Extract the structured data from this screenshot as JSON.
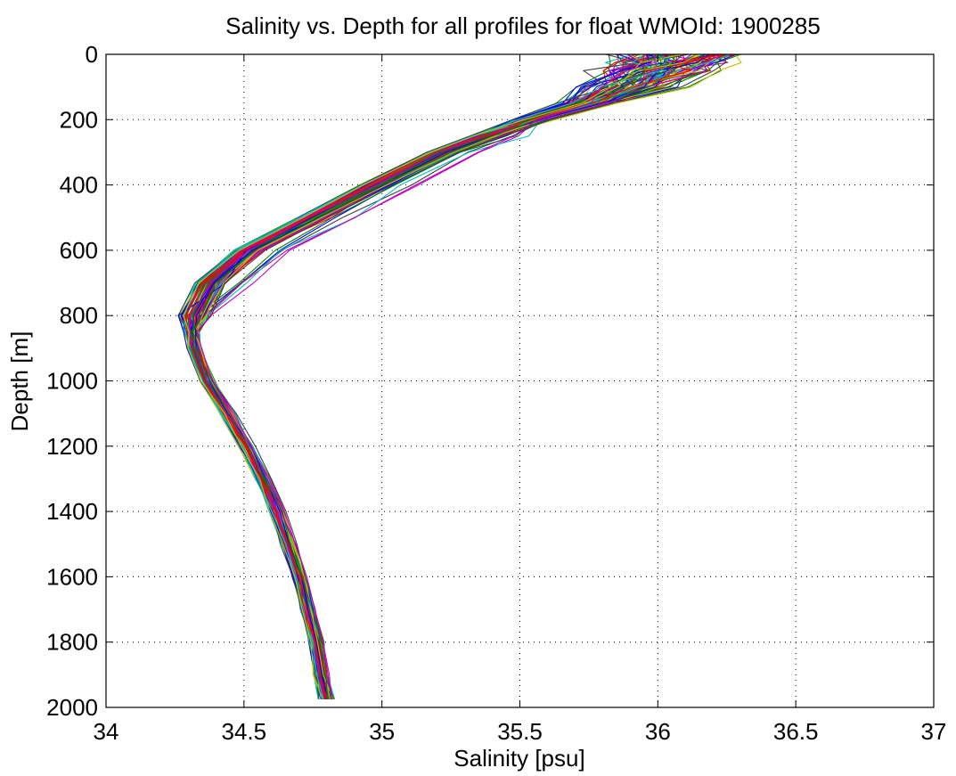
{
  "chart_data": {
    "type": "line",
    "title": "Salinity vs. Depth for all profiles for float WMOId: 1900285",
    "xlabel": "Salinity [psu]",
    "ylabel": "Depth [m]",
    "xlim": [
      34,
      37
    ],
    "ylim": [
      0,
      2000
    ],
    "y_reversed": true,
    "grid": true,
    "grid_style": "dotted",
    "x_ticks": [
      34,
      34.5,
      35,
      35.5,
      36,
      36.5,
      37
    ],
    "x_tick_labels": [
      "34",
      "34.5",
      "35",
      "35.5",
      "36",
      "36.5",
      "37"
    ],
    "y_ticks": [
      0,
      200,
      400,
      600,
      800,
      1000,
      1200,
      1400,
      1600,
      1800,
      2000
    ],
    "y_tick_labels": [
      "0",
      "200",
      "400",
      "600",
      "800",
      "1000",
      "1200",
      "1400",
      "1600",
      "1800",
      "2000"
    ],
    "series_colors": [
      "#0000ff",
      "#008000",
      "#ff0000",
      "#00bfbf",
      "#bf00bf",
      "#bfbf00",
      "#404040"
    ],
    "mean_profile": {
      "depth": [
        0,
        25,
        50,
        100,
        150,
        200,
        250,
        300,
        400,
        500,
        600,
        700,
        800,
        850,
        900,
        1000,
        1100,
        1200,
        1300,
        1400,
        1500,
        1600,
        1700,
        1800,
        1900,
        1975
      ],
      "salinity": [
        36.1,
        36.05,
        36.0,
        35.9,
        35.75,
        35.55,
        35.38,
        35.22,
        34.98,
        34.75,
        34.52,
        34.38,
        34.32,
        34.31,
        34.32,
        34.37,
        34.44,
        34.51,
        34.57,
        34.62,
        34.66,
        34.7,
        34.73,
        34.76,
        34.78,
        34.8
      ]
    },
    "profile_count": 90
  }
}
